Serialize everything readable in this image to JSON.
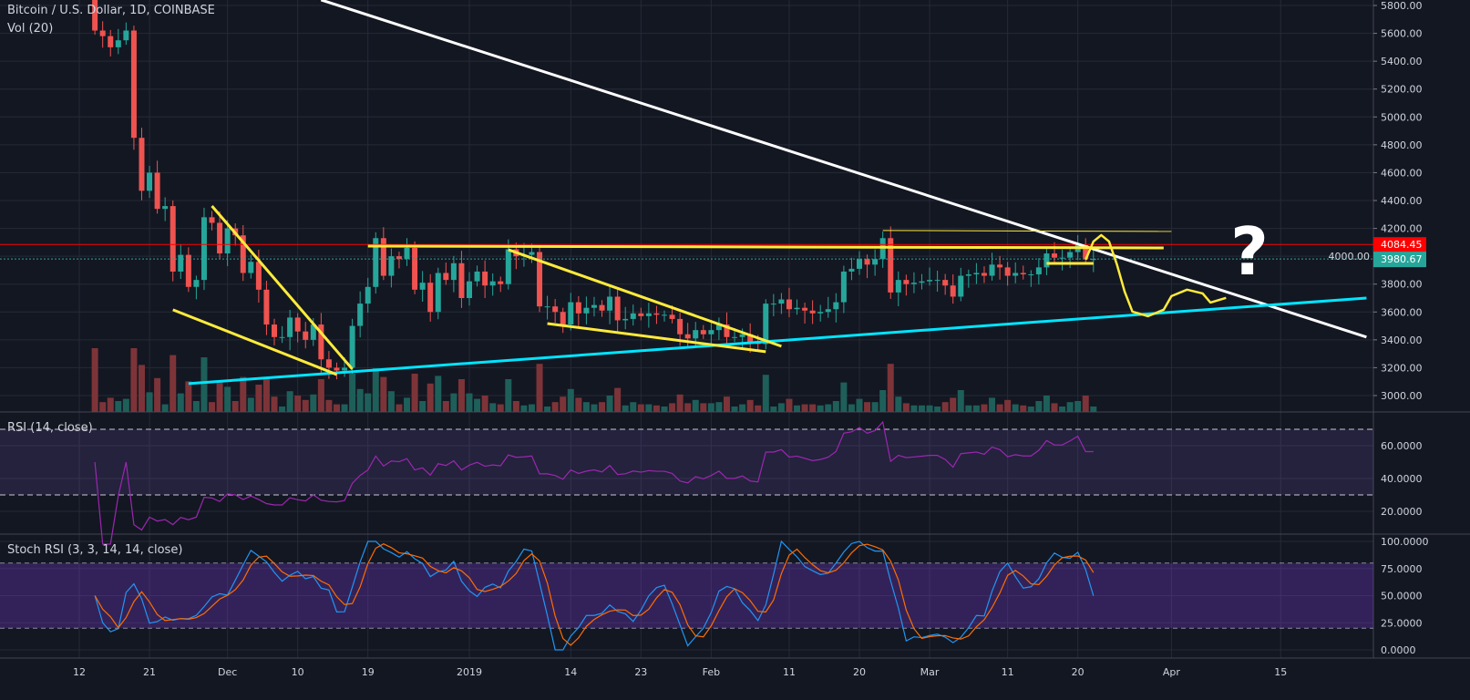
{
  "header": {
    "symbol_title": "Bitcoin / U.S. Dollar, 1D, COINBASE",
    "volume_label": "Vol (20)"
  },
  "rsi_panel": {
    "label": "RSI (14, close)",
    "ticks": [
      "20.0000",
      "40.0000",
      "60.0000"
    ],
    "bands": [
      30,
      70
    ]
  },
  "stoch_panel": {
    "label": "Stoch RSI (3, 3, 14, 14, close)",
    "ticks": [
      "0.0000",
      "25.0000",
      "50.0000",
      "75.0000",
      "100.0000"
    ],
    "bands": [
      20,
      80
    ]
  },
  "colors": {
    "background": "#131722",
    "up": "#26a69a",
    "down": "#ef5350",
    "rsi": "#9c27b0",
    "stoch_k": "#2196f3",
    "stoch_d": "#ff6d00",
    "trend_white": "#ffffff",
    "trend_cyan": "#00e5ff",
    "trend_yellow": "#ffeb3b",
    "alert_line": "#ff0000"
  },
  "chart_data": {
    "type": "candlestick",
    "title": "Bitcoin / U.S. Dollar, 1D, COINBASE",
    "start_date": "2018-11-14",
    "closes": [
      5620,
      5580,
      5500,
      5550,
      5620,
      4850,
      4470,
      4600,
      4340,
      4360,
      3890,
      4010,
      3780,
      3830,
      4280,
      4240,
      4020,
      4200,
      4150,
      3880,
      3960,
      3760,
      3510,
      3420,
      3420,
      3560,
      3460,
      3400,
      3510,
      3260,
      3200,
      3180,
      3200,
      3500,
      3660,
      3780,
      4130,
      3860,
      4000,
      3980,
      4060,
      3760,
      3810,
      3600,
      3880,
      3830,
      3950,
      3700,
      3820,
      3890,
      3790,
      3820,
      3800,
      4050,
      4000,
      4010,
      4030,
      3640,
      3640,
      3600,
      3510,
      3670,
      3590,
      3630,
      3650,
      3610,
      3710,
      3540,
      3550,
      3590,
      3570,
      3590,
      3580,
      3580,
      3550,
      3440,
      3410,
      3470,
      3440,
      3470,
      3510,
      3420,
      3420,
      3440,
      3380,
      3370,
      3660,
      3660,
      3690,
      3620,
      3630,
      3610,
      3590,
      3600,
      3620,
      3670,
      3890,
      3910,
      3980,
      3940,
      3980,
      4130,
      3740,
      3830,
      3800,
      3810,
      3820,
      3830,
      3830,
      3790,
      3710,
      3860,
      3870,
      3880,
      3860,
      3940,
      3920,
      3860,
      3880,
      3870,
      3870,
      3920,
      4020,
      3990,
      3990,
      4030,
      4080,
      3980,
      3980
    ],
    "first_open": 6360,
    "price_ticks": [
      3000,
      3200,
      3400,
      3600,
      3800,
      4000,
      4200,
      4400,
      4600,
      4800,
      5000,
      5200,
      5400,
      5600,
      5800
    ],
    "ylim": [
      3000,
      5800
    ],
    "x_ticks": [
      {
        "date": "2018-11-12",
        "label": "12"
      },
      {
        "date": "2018-11-21",
        "label": "21"
      },
      {
        "date": "2018-12-01",
        "label": "Dec"
      },
      {
        "date": "2018-12-10",
        "label": "10"
      },
      {
        "date": "2018-12-19",
        "label": "19"
      },
      {
        "date": "2019-01-01",
        "label": "2019"
      },
      {
        "date": "2019-01-14",
        "label": "14"
      },
      {
        "date": "2019-01-23",
        "label": "23"
      },
      {
        "date": "2019-02-01",
        "label": "Feb"
      },
      {
        "date": "2019-02-11",
        "label": "11"
      },
      {
        "date": "2019-02-20",
        "label": "20"
      },
      {
        "date": "2019-03-01",
        "label": "Mar"
      },
      {
        "date": "2019-03-11",
        "label": "11"
      },
      {
        "date": "2019-03-20",
        "label": "20"
      },
      {
        "date": "2019-04-01",
        "label": "Apr"
      },
      {
        "date": "2019-04-15",
        "label": "15"
      }
    ],
    "xlim": [
      "2018-11-08",
      "2019-04-26"
    ],
    "price_labels": [
      {
        "value": "4084.45",
        "price": 4084.45,
        "color": "#ff0000"
      },
      {
        "value": "3980.67",
        "price": 3980.67,
        "color": "#26a69a"
      }
    ],
    "drawings": [
      {
        "color": "trend_white",
        "points": [
          [
            "2018-12-13",
            5840
          ],
          [
            "2019-04-26",
            3420
          ]
        ]
      },
      {
        "color": "trend_cyan",
        "points": [
          [
            "2018-11-26",
            3086
          ],
          [
            "2019-04-26",
            3700
          ]
        ]
      },
      {
        "color": "trend_yellow",
        "points": [
          [
            "2018-11-29",
            4361
          ],
          [
            "2018-12-17",
            3190
          ]
        ]
      },
      {
        "color": "trend_yellow",
        "points": [
          [
            "2018-11-24",
            3616
          ],
          [
            "2018-12-15",
            3151
          ]
        ]
      },
      {
        "color": "trend_yellow",
        "points": [
          [
            "2018-12-19",
            4073
          ],
          [
            "2019-03-31",
            4060
          ]
        ]
      },
      {
        "color": "trend_yellow",
        "points": [
          [
            "2019-01-06",
            4047
          ],
          [
            "2019-02-10",
            3354
          ]
        ]
      },
      {
        "color": "trend_yellow",
        "points": [
          [
            "2019-01-11",
            3517
          ],
          [
            "2019-02-08",
            3315
          ]
        ]
      },
      {
        "color": "trend_yellow",
        "thin": true,
        "points": [
          [
            "2019-02-23",
            4185
          ],
          [
            "2019-04-01",
            4178
          ]
        ]
      },
      {
        "color": "trend_yellow",
        "points": [
          [
            "2019-03-16",
            3949
          ],
          [
            "2019-03-22",
            3949
          ]
        ]
      },
      {
        "color": "trend_yellow",
        "curve": true,
        "points": [
          [
            "2019-03-21",
            3975
          ],
          [
            "2019-03-22",
            4106
          ],
          [
            "2019-03-23",
            4152
          ],
          [
            "2019-03-24",
            4106
          ],
          [
            "2019-03-25",
            3943
          ],
          [
            "2019-03-26",
            3746
          ],
          [
            "2019-03-27",
            3602
          ],
          [
            "2019-03-29",
            3570
          ],
          [
            "2019-03-31",
            3616
          ],
          [
            "2019-04-01",
            3714
          ],
          [
            "2019-04-03",
            3760
          ],
          [
            "2019-04-05",
            3733
          ],
          [
            "2019-04-06",
            3668
          ],
          [
            "2019-04-08",
            3701
          ]
        ]
      }
    ],
    "annotation": {
      "text": "?",
      "date": "2019-04-11",
      "price": 4000
    }
  }
}
